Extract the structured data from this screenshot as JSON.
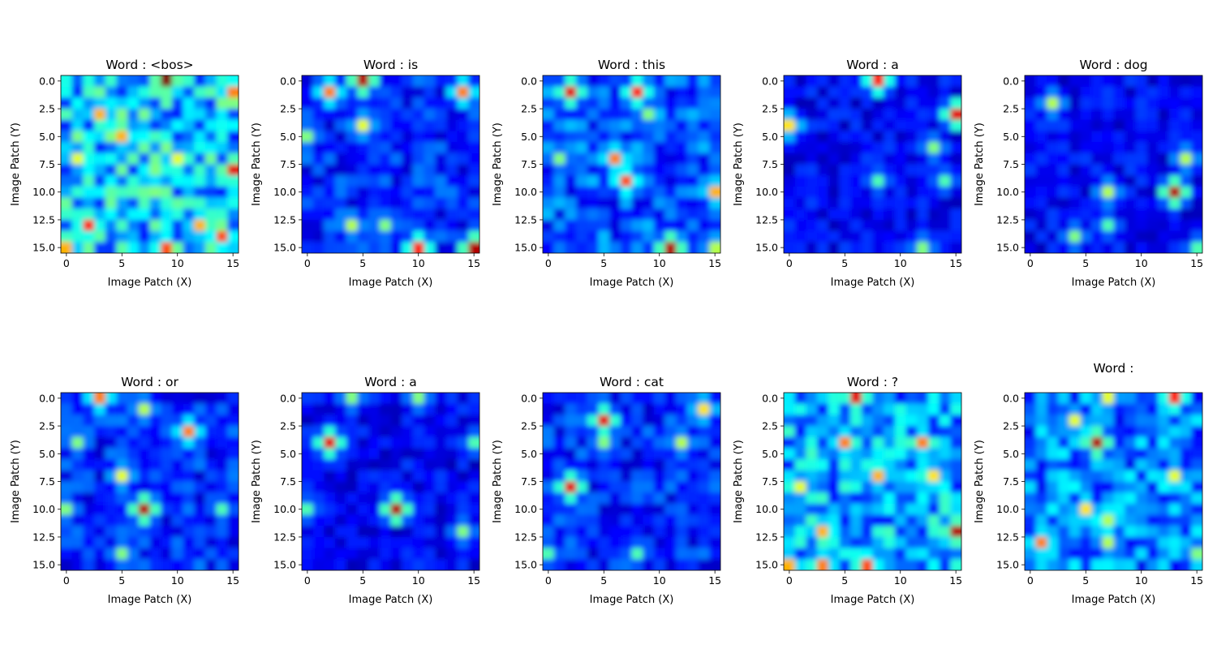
{
  "chart_data": [
    {
      "type": "heatmap",
      "title": "Word : <bos>",
      "xlabel": "Image Patch (X)",
      "ylabel": "Image Patch (Y)",
      "xticks": [
        0,
        5,
        10,
        15
      ],
      "yticks": [
        0.0,
        2.5,
        5.0,
        7.5,
        10.0,
        12.5,
        15.0
      ],
      "xlim": [
        -0.5,
        15.5
      ],
      "ylim": [
        15.5,
        -0.5
      ],
      "colormap": "jet",
      "grid_size": [
        16,
        16
      ],
      "hotspots": [
        {
          "x": 9,
          "y": 0,
          "v": 1.0
        },
        {
          "x": 3,
          "y": 3,
          "v": 0.7
        },
        {
          "x": 5,
          "y": 5,
          "v": 0.7
        },
        {
          "x": 15,
          "y": 1,
          "v": 0.75
        },
        {
          "x": 15,
          "y": 8,
          "v": 0.9
        },
        {
          "x": 2,
          "y": 13,
          "v": 0.85
        },
        {
          "x": 9,
          "y": 15,
          "v": 0.8
        },
        {
          "x": 14,
          "y": 14,
          "v": 0.8
        },
        {
          "x": 12,
          "y": 13,
          "v": 0.7
        },
        {
          "x": 0,
          "y": 15,
          "v": 0.7
        },
        {
          "x": 1,
          "y": 7,
          "v": 0.6
        },
        {
          "x": 10,
          "y": 7,
          "v": 0.6
        }
      ],
      "base": 0.4
    },
    {
      "type": "heatmap",
      "title": "Word : is",
      "xlabel": "Image Patch (X)",
      "ylabel": "Image Patch (Y)",
      "xticks": [
        0,
        5,
        10,
        15
      ],
      "yticks": [
        0.0,
        2.5,
        5.0,
        7.5,
        10.0,
        12.5,
        15.0
      ],
      "xlim": [
        -0.5,
        15.5
      ],
      "ylim": [
        15.5,
        -0.5
      ],
      "colormap": "jet",
      "grid_size": [
        16,
        16
      ],
      "hotspots": [
        {
          "x": 5,
          "y": 0,
          "v": 0.95
        },
        {
          "x": 2,
          "y": 1,
          "v": 0.75
        },
        {
          "x": 14,
          "y": 1,
          "v": 0.75
        },
        {
          "x": 5,
          "y": 4,
          "v": 0.6
        },
        {
          "x": 0,
          "y": 5,
          "v": 0.5
        },
        {
          "x": 10,
          "y": 15,
          "v": 0.85
        },
        {
          "x": 15,
          "y": 15,
          "v": 0.95
        },
        {
          "x": 4,
          "y": 13,
          "v": 0.55
        },
        {
          "x": 7,
          "y": 13,
          "v": 0.5
        }
      ],
      "base": 0.2
    },
    {
      "type": "heatmap",
      "title": "Word :  this",
      "xlabel": "Image Patch (X)",
      "ylabel": "Image Patch (Y)",
      "xticks": [
        0,
        5,
        10,
        15
      ],
      "yticks": [
        0.0,
        2.5,
        5.0,
        7.5,
        10.0,
        12.5,
        15.0
      ],
      "xlim": [
        -0.5,
        15.5
      ],
      "ylim": [
        15.5,
        -0.5
      ],
      "colormap": "jet",
      "grid_size": [
        16,
        16
      ],
      "hotspots": [
        {
          "x": 2,
          "y": 1,
          "v": 0.9
        },
        {
          "x": 8,
          "y": 1,
          "v": 0.85
        },
        {
          "x": 6,
          "y": 7,
          "v": 0.75
        },
        {
          "x": 7,
          "y": 9,
          "v": 0.8
        },
        {
          "x": 11,
          "y": 15,
          "v": 0.95
        },
        {
          "x": 15,
          "y": 10,
          "v": 0.7
        },
        {
          "x": 15,
          "y": 15,
          "v": 0.55
        },
        {
          "x": 1,
          "y": 7,
          "v": 0.5
        },
        {
          "x": 9,
          "y": 3,
          "v": 0.5
        }
      ],
      "base": 0.25
    },
    {
      "type": "heatmap",
      "title": "Word :  a",
      "xlabel": "Image Patch (X)",
      "ylabel": "Image Patch (Y)",
      "xticks": [
        0,
        5,
        10,
        15
      ],
      "yticks": [
        0.0,
        2.5,
        5.0,
        7.5,
        10.0,
        12.5,
        15.0
      ],
      "xlim": [
        -0.5,
        15.5
      ],
      "ylim": [
        15.5,
        -0.5
      ],
      "colormap": "jet",
      "grid_size": [
        16,
        16
      ],
      "hotspots": [
        {
          "x": 8,
          "y": 0,
          "v": 0.85
        },
        {
          "x": 15,
          "y": 3,
          "v": 0.9
        },
        {
          "x": 0,
          "y": 4,
          "v": 0.65
        },
        {
          "x": 13,
          "y": 6,
          "v": 0.5
        },
        {
          "x": 8,
          "y": 9,
          "v": 0.45
        },
        {
          "x": 14,
          "y": 9,
          "v": 0.45
        },
        {
          "x": 12,
          "y": 15,
          "v": 0.5
        }
      ],
      "base": 0.15
    },
    {
      "type": "heatmap",
      "title": "Word :  dog",
      "xlabel": "Image Patch (X)",
      "ylabel": "Image Patch (Y)",
      "xticks": [
        0,
        5,
        10,
        15
      ],
      "yticks": [
        0.0,
        2.5,
        5.0,
        7.5,
        10.0,
        12.5,
        15.0
      ],
      "xlim": [
        -0.5,
        15.5
      ],
      "ylim": [
        15.5,
        -0.5
      ],
      "colormap": "jet",
      "grid_size": [
        16,
        16
      ],
      "hotspots": [
        {
          "x": 13,
          "y": 10,
          "v": 0.95
        },
        {
          "x": 2,
          "y": 2,
          "v": 0.55
        },
        {
          "x": 14,
          "y": 7,
          "v": 0.55
        },
        {
          "x": 7,
          "y": 10,
          "v": 0.55
        },
        {
          "x": 7,
          "y": 13,
          "v": 0.45
        },
        {
          "x": 4,
          "y": 14,
          "v": 0.5
        },
        {
          "x": 15,
          "y": 15,
          "v": 0.45
        }
      ],
      "base": 0.15
    },
    {
      "type": "heatmap",
      "title": "Word :  or",
      "xlabel": "Image Patch (X)",
      "ylabel": "Image Patch (Y)",
      "xticks": [
        0,
        5,
        10,
        15
      ],
      "yticks": [
        0.0,
        2.5,
        5.0,
        7.5,
        10.0,
        12.5,
        15.0
      ],
      "xlim": [
        -0.5,
        15.5
      ],
      "ylim": [
        15.5,
        -0.5
      ],
      "colormap": "jet",
      "grid_size": [
        16,
        16
      ],
      "hotspots": [
        {
          "x": 3,
          "y": 0,
          "v": 0.75
        },
        {
          "x": 7,
          "y": 1,
          "v": 0.55
        },
        {
          "x": 11,
          "y": 3,
          "v": 0.75
        },
        {
          "x": 1,
          "y": 4,
          "v": 0.5
        },
        {
          "x": 5,
          "y": 7,
          "v": 0.6
        },
        {
          "x": 7,
          "y": 10,
          "v": 0.95
        },
        {
          "x": 0,
          "y": 10,
          "v": 0.5
        },
        {
          "x": 5,
          "y": 14,
          "v": 0.5
        },
        {
          "x": 14,
          "y": 10,
          "v": 0.45
        }
      ],
      "base": 0.2
    },
    {
      "type": "heatmap",
      "title": "Word :  a",
      "xlabel": "Image Patch (X)",
      "ylabel": "Image Patch (Y)",
      "xticks": [
        0,
        5,
        10,
        15
      ],
      "yticks": [
        0.0,
        2.5,
        5.0,
        7.5,
        10.0,
        12.5,
        15.0
      ],
      "xlim": [
        -0.5,
        15.5
      ],
      "ylim": [
        15.5,
        -0.5
      ],
      "colormap": "jet",
      "grid_size": [
        16,
        16
      ],
      "hotspots": [
        {
          "x": 2,
          "y": 4,
          "v": 0.9
        },
        {
          "x": 8,
          "y": 10,
          "v": 0.95
        },
        {
          "x": 4,
          "y": 0,
          "v": 0.5
        },
        {
          "x": 10,
          "y": 0,
          "v": 0.5
        },
        {
          "x": 15,
          "y": 4,
          "v": 0.45
        },
        {
          "x": 14,
          "y": 12,
          "v": 0.5
        },
        {
          "x": 0,
          "y": 10,
          "v": 0.45
        }
      ],
      "base": 0.15
    },
    {
      "type": "heatmap",
      "title": "Word :  cat",
      "xlabel": "Image Patch (X)",
      "ylabel": "Image Patch (Y)",
      "xticks": [
        0,
        5,
        10,
        15
      ],
      "yticks": [
        0.0,
        2.5,
        5.0,
        7.5,
        10.0,
        12.5,
        15.0
      ],
      "xlim": [
        -0.5,
        15.5
      ],
      "ylim": [
        15.5,
        -0.5
      ],
      "colormap": "jet",
      "grid_size": [
        16,
        16
      ],
      "hotspots": [
        {
          "x": 5,
          "y": 2,
          "v": 0.9
        },
        {
          "x": 2,
          "y": 8,
          "v": 0.9
        },
        {
          "x": 14,
          "y": 1,
          "v": 0.65
        },
        {
          "x": 12,
          "y": 4,
          "v": 0.55
        },
        {
          "x": 5,
          "y": 4,
          "v": 0.5
        },
        {
          "x": 0,
          "y": 14,
          "v": 0.45
        },
        {
          "x": 8,
          "y": 14,
          "v": 0.45
        }
      ],
      "base": 0.2
    },
    {
      "type": "heatmap",
      "title": "Word :  ?",
      "xlabel": "Image Patch (X)",
      "ylabel": "Image Patch (Y)",
      "xticks": [
        0,
        5,
        10,
        15
      ],
      "yticks": [
        0.0,
        2.5,
        5.0,
        7.5,
        10.0,
        12.5,
        15.0
      ],
      "xlim": [
        -0.5,
        15.5
      ],
      "ylim": [
        15.5,
        -0.5
      ],
      "colormap": "jet",
      "grid_size": [
        16,
        16
      ],
      "hotspots": [
        {
          "x": 6,
          "y": 0,
          "v": 0.9
        },
        {
          "x": 5,
          "y": 4,
          "v": 0.75
        },
        {
          "x": 12,
          "y": 4,
          "v": 0.75
        },
        {
          "x": 8,
          "y": 7,
          "v": 0.7
        },
        {
          "x": 13,
          "y": 7,
          "v": 0.65
        },
        {
          "x": 15,
          "y": 12,
          "v": 0.95
        },
        {
          "x": 3,
          "y": 12,
          "v": 0.7
        },
        {
          "x": 7,
          "y": 15,
          "v": 0.8
        },
        {
          "x": 3,
          "y": 15,
          "v": 0.75
        },
        {
          "x": 0,
          "y": 15,
          "v": 0.7
        },
        {
          "x": 1,
          "y": 8,
          "v": 0.6
        }
      ],
      "base": 0.35
    },
    {
      "type": "heatmap",
      "title": "Word : ",
      "xlabel": "Image Patch (X)",
      "ylabel": "Image Patch (Y)",
      "xticks": [
        0,
        5,
        10,
        15
      ],
      "yticks": [
        0.0,
        2.5,
        5.0,
        7.5,
        10.0,
        12.5,
        15.0
      ],
      "xlim": [
        -0.5,
        15.5
      ],
      "ylim": [
        15.5,
        -0.5
      ],
      "colormap": "jet",
      "grid_size": [
        16,
        16
      ],
      "hotspots": [
        {
          "x": 13,
          "y": 0,
          "v": 0.85
        },
        {
          "x": 6,
          "y": 4,
          "v": 0.95
        },
        {
          "x": 7,
          "y": 0,
          "v": 0.6
        },
        {
          "x": 4,
          "y": 2,
          "v": 0.6
        },
        {
          "x": 13,
          "y": 7,
          "v": 0.6
        },
        {
          "x": 5,
          "y": 10,
          "v": 0.65
        },
        {
          "x": 1,
          "y": 13,
          "v": 0.75
        },
        {
          "x": 7,
          "y": 13,
          "v": 0.55
        },
        {
          "x": 7,
          "y": 11,
          "v": 0.55
        },
        {
          "x": 15,
          "y": 14,
          "v": 0.5
        }
      ],
      "base": 0.3
    }
  ]
}
